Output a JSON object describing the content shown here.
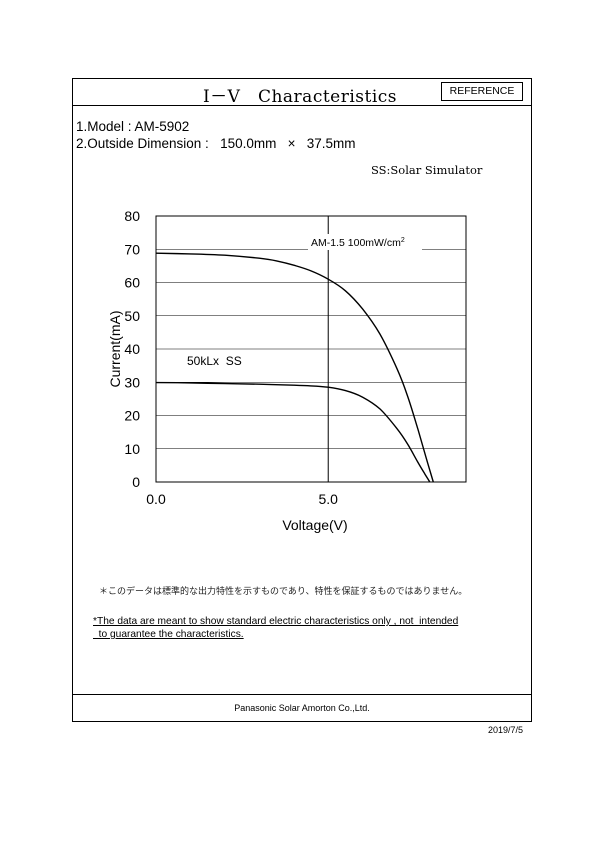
{
  "header": {
    "title": "Ⅰ－Ⅴ　Characteristics",
    "badge": "REFERENCE"
  },
  "specs": {
    "model_line": "1.Model : AM-5902",
    "dimension_line": "2.Outside Dimension :   150.0mm   ×   37.5mm",
    "ss_note": "SS:Solar Simulator"
  },
  "chart_data": {
    "type": "line",
    "xlabel": "Voltage(V)",
    "ylabel": "Current(mA)",
    "xlim": [
      0,
      9
    ],
    "ylim": [
      0,
      80
    ],
    "x_ticks": [
      {
        "value": 0,
        "label": "0.0"
      },
      {
        "value": 5,
        "label": "5.0"
      }
    ],
    "y_ticks": [
      0,
      10,
      20,
      30,
      40,
      50,
      60,
      70,
      80
    ],
    "grid": "horizontal",
    "reference_line_x": 5,
    "series": [
      {
        "label": "AM-1.5 100mW/cm",
        "label_sup": "2",
        "x": [
          0,
          1,
          2,
          3,
          3.5,
          4,
          4.5,
          5,
          5.5,
          6,
          6.5,
          7,
          7.3,
          7.6,
          7.85,
          8.05
        ],
        "y": [
          68.8,
          68.6,
          68.2,
          67.3,
          66.5,
          65.2,
          63.5,
          61,
          57.5,
          52,
          44.5,
          34,
          26,
          16,
          7,
          0
        ]
      },
      {
        "label": "50kLx  SS",
        "x": [
          0,
          1,
          2,
          3,
          4,
          4.5,
          5,
          5.5,
          6,
          6.5,
          7,
          7.3,
          7.6,
          7.8,
          7.95
        ],
        "y": [
          29.9,
          29.8,
          29.6,
          29.4,
          29.1,
          28.9,
          28.5,
          27.5,
          25.5,
          22,
          16,
          11.5,
          6,
          2.5,
          0
        ]
      }
    ]
  },
  "notes": {
    "japanese": "＊このデータは標準的な出力特性を示すものであり、特性を保証するものではありません。",
    "english_line1": "*The data are meant to show standard electric characteristics only , not  intended",
    "english_line2": "  to guarantee the characteristics."
  },
  "footer": {
    "company": "Panasonic Solar  Amorton Co.,Ltd.",
    "date": "2019/7/5"
  }
}
